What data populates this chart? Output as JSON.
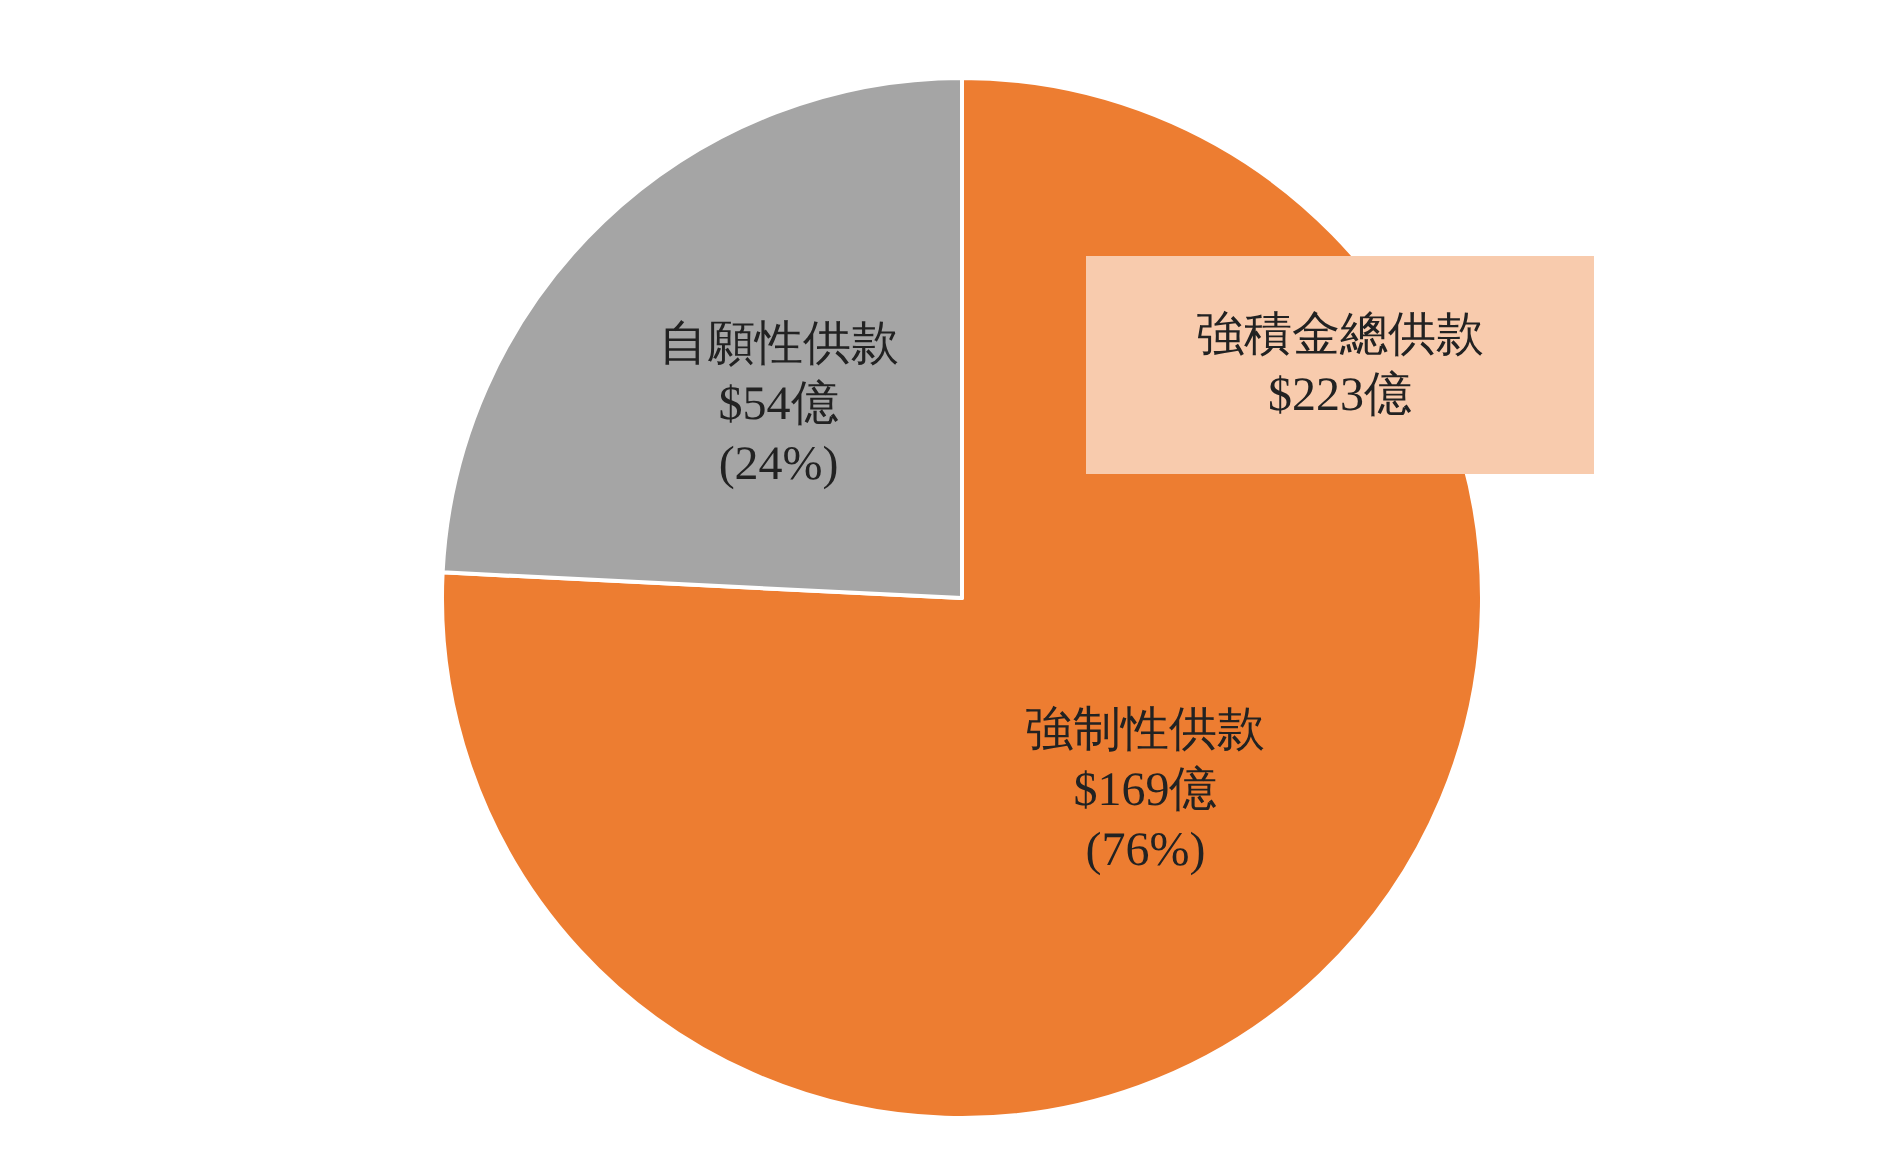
{
  "chart_data": {
    "type": "pie",
    "categories": [
      "強制性供款",
      "自願性供款"
    ],
    "values": [
      169,
      54
    ],
    "colors": [
      "#ed7d31",
      "#a5a5a5"
    ],
    "value_labels": [
      "$169億\n(76%)",
      "$54億\n(24%)"
    ],
    "annotations": [
      "強積金總供款\n$223億"
    ],
    "legend": false
  }
}
